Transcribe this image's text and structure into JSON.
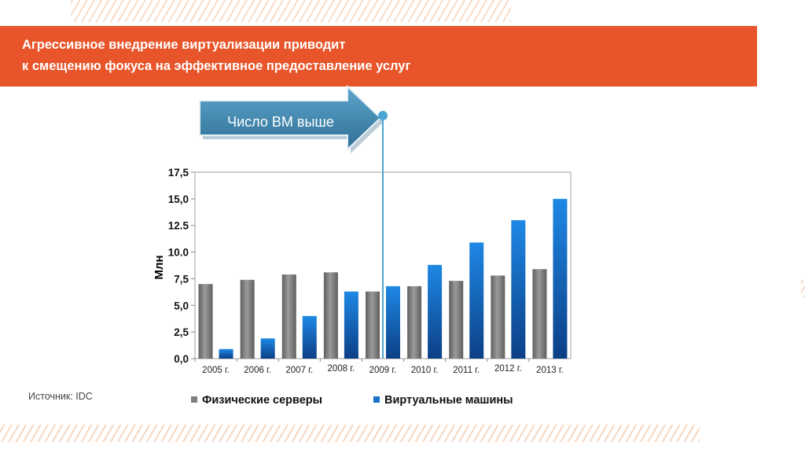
{
  "header": {
    "title_line1": "Агрессивное внедрение виртуализации приводит",
    "title_line2": "к смещению фокуса на эффективное предоставление услуг"
  },
  "callout": {
    "text": "Число ВМ выше",
    "marker_category": "2009 г."
  },
  "source": "Источник: IDC",
  "colors": {
    "banner": "#e8552a",
    "physical": "#808080",
    "virtual": "#1a73c8",
    "callout_fill": "#4a8fb5",
    "marker_line": "#4aa6d1"
  },
  "chart_data": {
    "type": "bar",
    "categories": [
      "2005 г.",
      "2006 г.",
      "2007 г.",
      "2008 г.",
      "2009 г.",
      "2010 г.",
      "2011 г.",
      "2012 г.",
      "2013 г."
    ],
    "series": [
      {
        "name": "Физические серверы",
        "values": [
          7.0,
          7.4,
          7.9,
          8.1,
          6.3,
          6.8,
          7.3,
          7.8,
          8.4
        ]
      },
      {
        "name": "Виртуальные машины",
        "values": [
          0.9,
          1.9,
          4.0,
          6.3,
          6.8,
          8.8,
          10.9,
          13.0,
          15.0
        ]
      }
    ],
    "ylabel": "Млн",
    "ylim": [
      0,
      17.5
    ],
    "yticks": [
      "0,0",
      "2,5",
      "5,0",
      "7,5",
      "10.0",
      "12.5",
      "15,0",
      "17,5"
    ],
    "grid": false,
    "legend": "bottom"
  }
}
